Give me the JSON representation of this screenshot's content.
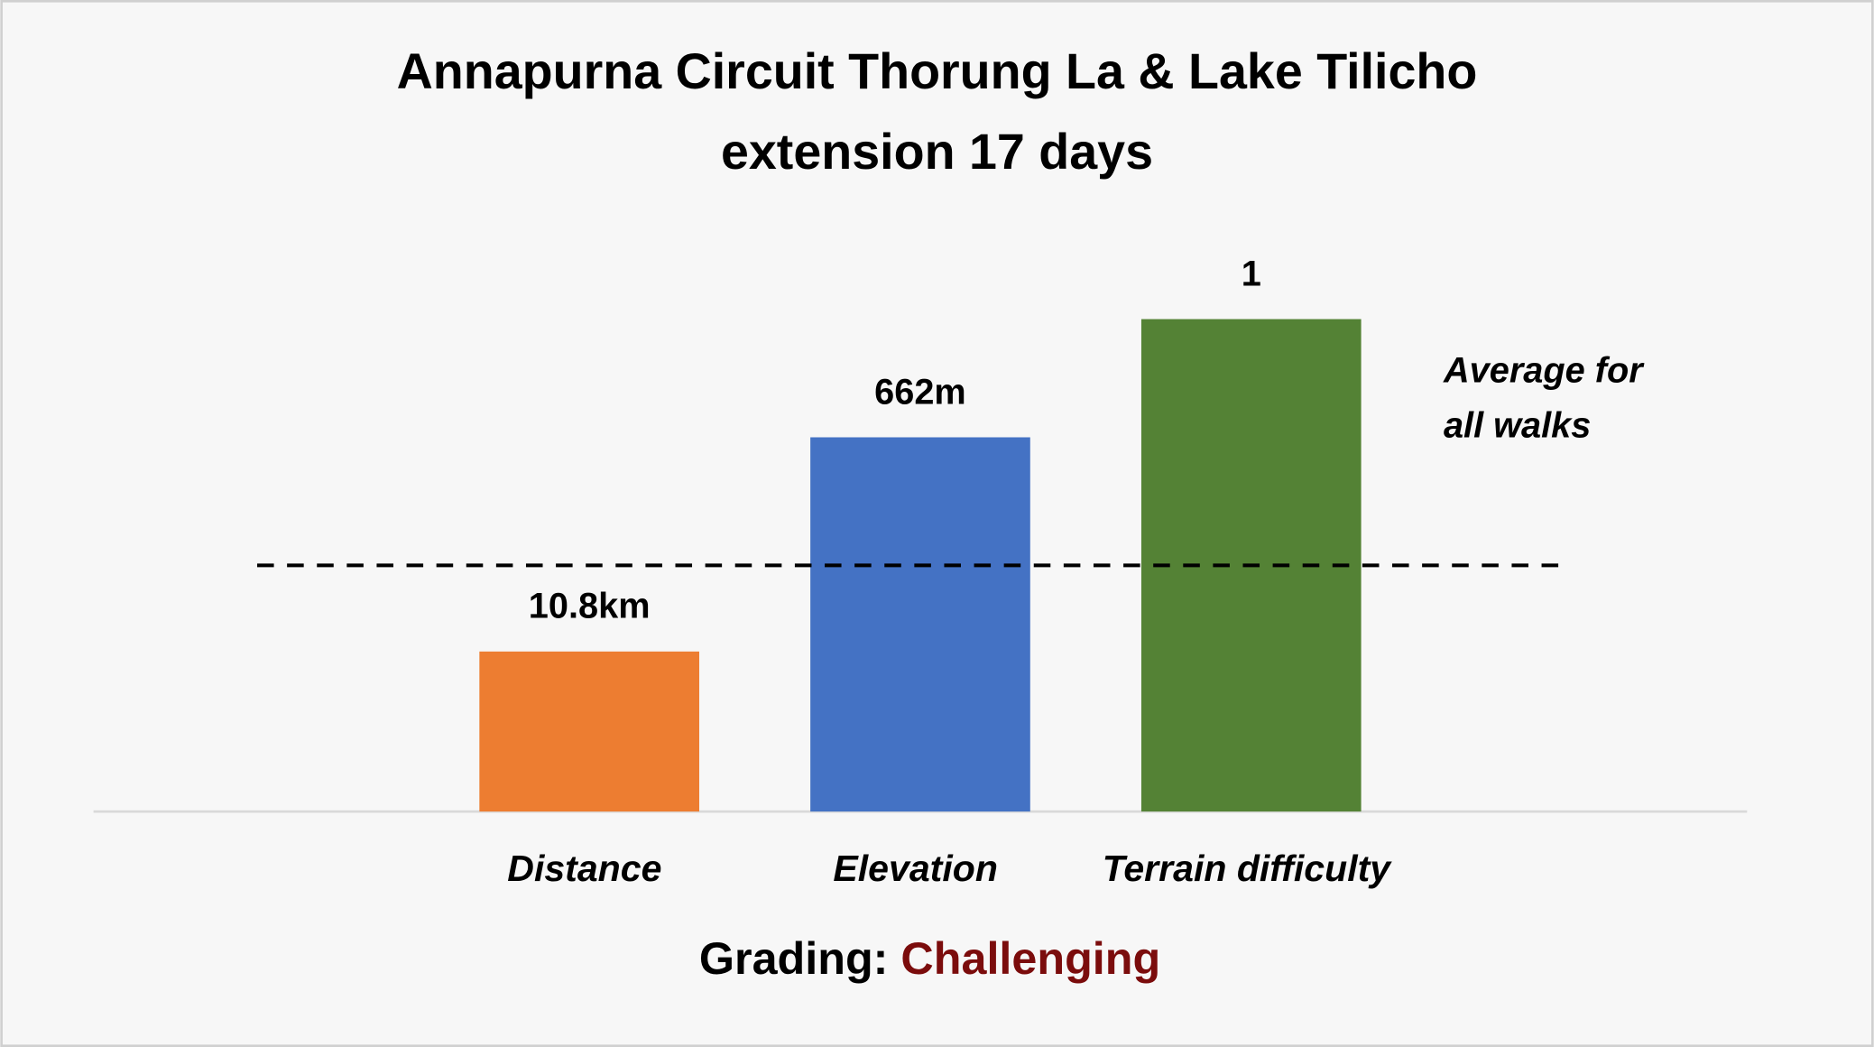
{
  "chart_data": {
    "type": "bar",
    "title": [
      "Annapurna Circuit Thorung La & Lake Tilicho",
      "extension 17 days"
    ],
    "categories": [
      "Distance",
      "Elevation",
      "Terrain difficulty"
    ],
    "values": [
      0.65,
      1.52,
      2.0
    ],
    "bar_labels": [
      "10.8km",
      "662m",
      "1"
    ],
    "colors": [
      "#ed7d31",
      "#4472c4",
      "#548235"
    ],
    "ylim": [
      0,
      2.1
    ],
    "average": 1,
    "average_label": [
      "Average for",
      "all walks"
    ],
    "grading_label": "Grading:",
    "grading": "Challenging",
    "grading_color": "#7b0c0c"
  }
}
